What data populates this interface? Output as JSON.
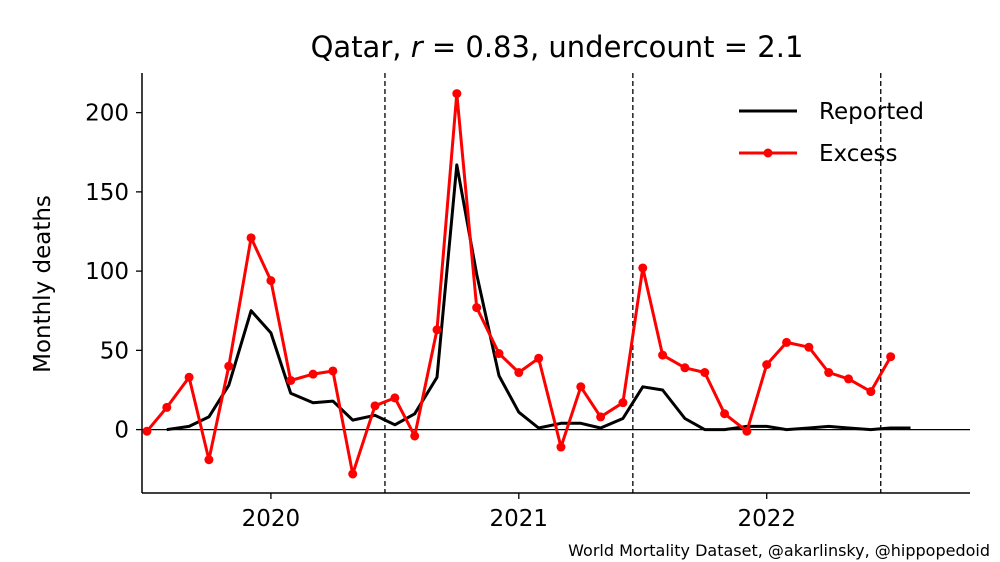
{
  "chart_data": {
    "type": "line",
    "title": {
      "country": "Qatar",
      "r_symbol": "r",
      "r_value": "0.83",
      "undercount_word": "undercount",
      "undercount_value": "2.1"
    },
    "ylabel": "Monthly deaths",
    "xlabel": "",
    "ylim": [
      -40,
      225
    ],
    "yticks": [
      0,
      50,
      100,
      150,
      200
    ],
    "xlim": [
      2019.48,
      2022.82
    ],
    "xticks": [
      {
        "value": 2020.0,
        "label": "2020"
      },
      {
        "value": 2021.0,
        "label": "2021"
      },
      {
        "value": 2022.0,
        "label": "2022"
      }
    ],
    "vlines": [
      2020.46,
      2021.46,
      2022.46
    ],
    "zero_line": true,
    "legend": {
      "position": "top-right"
    },
    "series": [
      {
        "name": "Reported",
        "color": "#000000",
        "marker": false,
        "x": [
          2019.58,
          2019.67,
          2019.75,
          2019.83,
          2019.92,
          2020.0,
          2020.08,
          2020.17,
          2020.25,
          2020.33,
          2020.42,
          2020.5,
          2020.58,
          2020.67,
          2020.75,
          2020.83,
          2020.92,
          2021.0,
          2021.08,
          2021.17,
          2021.25,
          2021.33,
          2021.42,
          2021.5,
          2021.58,
          2021.67,
          2021.75,
          2021.83,
          2021.92,
          2022.0,
          2022.08,
          2022.17,
          2022.25,
          2022.33,
          2022.42,
          2022.5,
          2022.58
        ],
        "y": [
          0,
          2,
          8,
          28,
          75,
          61,
          23,
          17,
          18,
          6,
          9,
          3,
          10,
          33,
          167,
          98,
          34,
          11,
          1,
          4,
          4,
          1,
          7,
          27,
          25,
          7,
          0,
          0,
          2,
          2,
          0,
          1,
          2,
          1,
          0,
          1,
          1
        ]
      },
      {
        "name": "Excess",
        "color": "#ff0000",
        "marker": true,
        "x": [
          2019.5,
          2019.58,
          2019.67,
          2019.75,
          2019.83,
          2019.92,
          2020.0,
          2020.08,
          2020.17,
          2020.25,
          2020.33,
          2020.42,
          2020.5,
          2020.58,
          2020.67,
          2020.75,
          2020.83,
          2020.92,
          2021.0,
          2021.08,
          2021.17,
          2021.25,
          2021.33,
          2021.42,
          2021.5,
          2021.58,
          2021.67,
          2021.75,
          2021.83,
          2021.92,
          2022.0,
          2022.08,
          2022.17,
          2022.25,
          2022.33,
          2022.42,
          2022.5
        ],
        "y": [
          -1,
          14,
          33,
          -19,
          40,
          121,
          94,
          31,
          35,
          37,
          -28,
          15,
          20,
          -4,
          63,
          212,
          77,
          48,
          36,
          45,
          -11,
          27,
          8,
          17,
          102,
          47,
          39,
          36,
          10,
          -1,
          41,
          55,
          52,
          36,
          32,
          24,
          46
        ]
      }
    ]
  },
  "credit": "World Mortality Dataset, @akarlinsky, @hippopedoid"
}
